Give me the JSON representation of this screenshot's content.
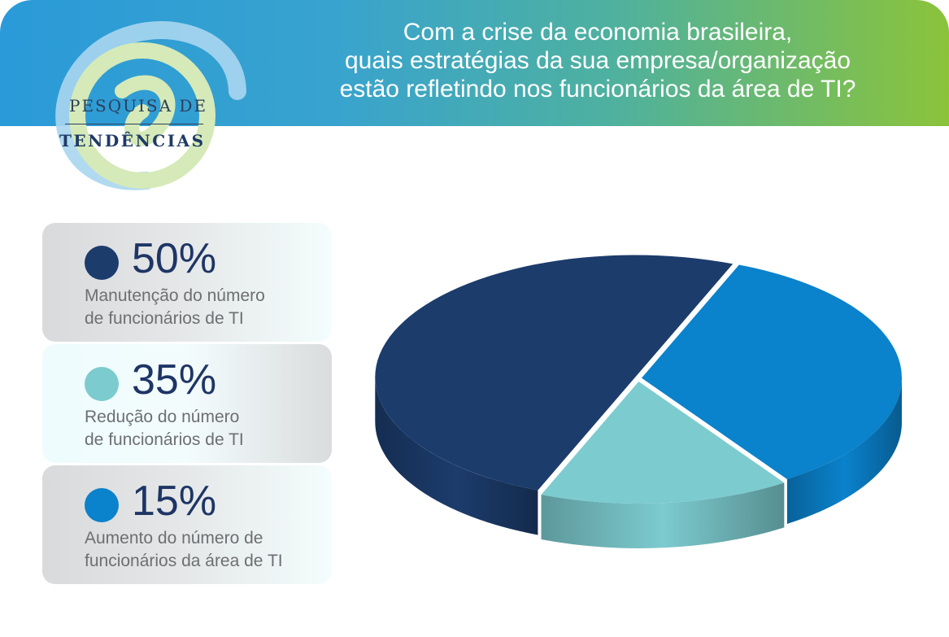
{
  "header": {
    "question_lines": [
      "Com a crise da economia brasileira,",
      "quais estratégias da sua empresa/organização",
      "estão refletindo nos funcionários da área de TI?"
    ]
  },
  "logo": {
    "line1": "PESQUISA DE",
    "line2": "TENDÊNCIAS",
    "icon": "at-sign-icon"
  },
  "colors": {
    "dark_navy": "#1c3c6c",
    "light_teal": "#7ccbcf",
    "blue": "#0a82cc"
  },
  "chart_data": {
    "type": "pie",
    "title": "Com a crise da economia brasileira, quais estratégias da sua empresa/organização estão refletindo nos funcionários da área de TI?",
    "slices": [
      {
        "label": "Manutenção do número de funcionários de TI",
        "value": 50,
        "value_label": "50%",
        "color": "#1c3c6c",
        "desc_lines": [
          "Manutenção do número",
          "de funcionários de TI"
        ]
      },
      {
        "label": "Redução do número de funcionários de TI",
        "value": 35,
        "value_label": "35%",
        "color": "#7ccbcf",
        "desc_lines": [
          "Redução do número",
          "de funcionários de TI"
        ]
      },
      {
        "label": "Aumento do número de funcionários da área de TI",
        "value": 15,
        "value_label": "15%",
        "color": "#0a82cc",
        "desc_lines": [
          "Aumento do número de",
          "funcionários da área de TI"
        ]
      }
    ],
    "legend_position": "left"
  }
}
